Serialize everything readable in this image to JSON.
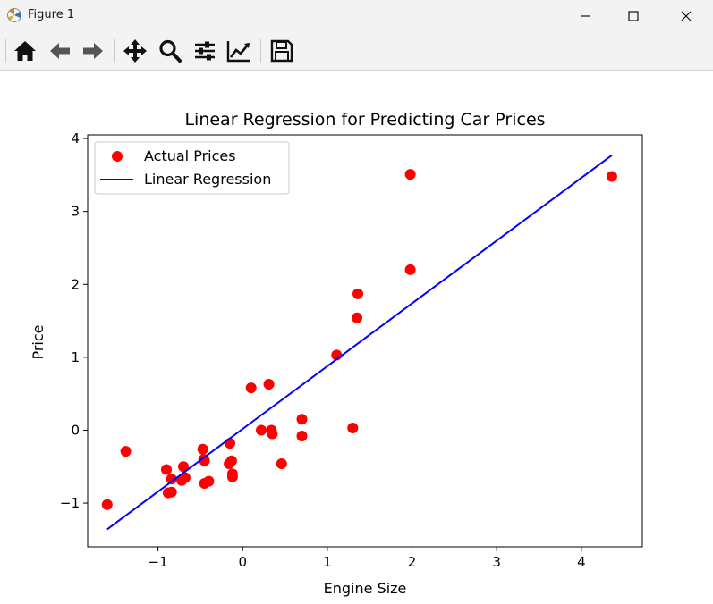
{
  "window": {
    "title": "Figure 1",
    "icon": "matplotlib-icon",
    "controls": [
      "minimize-icon",
      "maximize-icon",
      "close-icon"
    ]
  },
  "toolbar": {
    "buttons": [
      "home-icon",
      "back-arrow-icon",
      "forward-arrow-icon",
      "pan-icon",
      "zoom-icon",
      "configure-subplots-icon",
      "edit-axis-icon",
      "save-icon"
    ]
  },
  "chart_data": {
    "type": "scatter",
    "title": "Linear Regression for Predicting Car Prices",
    "xlabel": "Engine Size",
    "ylabel": "Price",
    "xlim": [
      -1.83,
      4.72
    ],
    "ylim": [
      -1.6,
      4.05
    ],
    "xticks": [
      -1,
      0,
      1,
      2,
      3,
      4
    ],
    "xtick_labels": [
      "−1",
      "0",
      "1",
      "2",
      "3",
      "4"
    ],
    "yticks": [
      -1,
      0,
      1,
      2,
      3,
      4
    ],
    "ytick_labels": [
      "−1",
      "0",
      "1",
      "2",
      "3",
      "4"
    ],
    "grid": false,
    "legend": {
      "position": "top-left",
      "entries": [
        "Actual Prices",
        "Linear Regression"
      ]
    },
    "colors": {
      "points": "#ff0000",
      "line": "#0000ff"
    },
    "series": [
      {
        "name": "Actual Prices",
        "kind": "scatter",
        "points": [
          [
            -1.6,
            -1.02
          ],
          [
            -1.38,
            -0.29
          ],
          [
            -0.9,
            -0.54
          ],
          [
            -0.88,
            -0.86
          ],
          [
            -0.84,
            -0.67
          ],
          [
            -0.84,
            -0.85
          ],
          [
            -0.7,
            -0.5
          ],
          [
            -0.72,
            -0.69
          ],
          [
            -0.68,
            -0.65
          ],
          [
            -0.47,
            -0.26
          ],
          [
            -0.46,
            -0.4
          ],
          [
            -0.45,
            -0.42
          ],
          [
            -0.45,
            -0.73
          ],
          [
            -0.4,
            -0.7
          ],
          [
            -0.15,
            -0.18
          ],
          [
            -0.16,
            -0.46
          ],
          [
            -0.13,
            -0.42
          ],
          [
            -0.12,
            -0.6
          ],
          [
            -0.12,
            -0.64
          ],
          [
            0.1,
            0.58
          ],
          [
            0.22,
            0.0
          ],
          [
            0.31,
            0.63
          ],
          [
            0.34,
            0.0
          ],
          [
            0.35,
            -0.05
          ],
          [
            0.46,
            -0.46
          ],
          [
            0.7,
            0.15
          ],
          [
            0.7,
            -0.08
          ],
          [
            1.11,
            1.03
          ],
          [
            1.3,
            0.03
          ],
          [
            1.35,
            1.54
          ],
          [
            1.36,
            1.87
          ],
          [
            1.98,
            3.51
          ],
          [
            1.98,
            2.2
          ],
          [
            4.36,
            3.48
          ]
        ]
      },
      {
        "name": "Linear Regression",
        "kind": "line",
        "points": [
          [
            -1.6,
            -1.36
          ],
          [
            4.36,
            3.77
          ]
        ]
      }
    ]
  }
}
